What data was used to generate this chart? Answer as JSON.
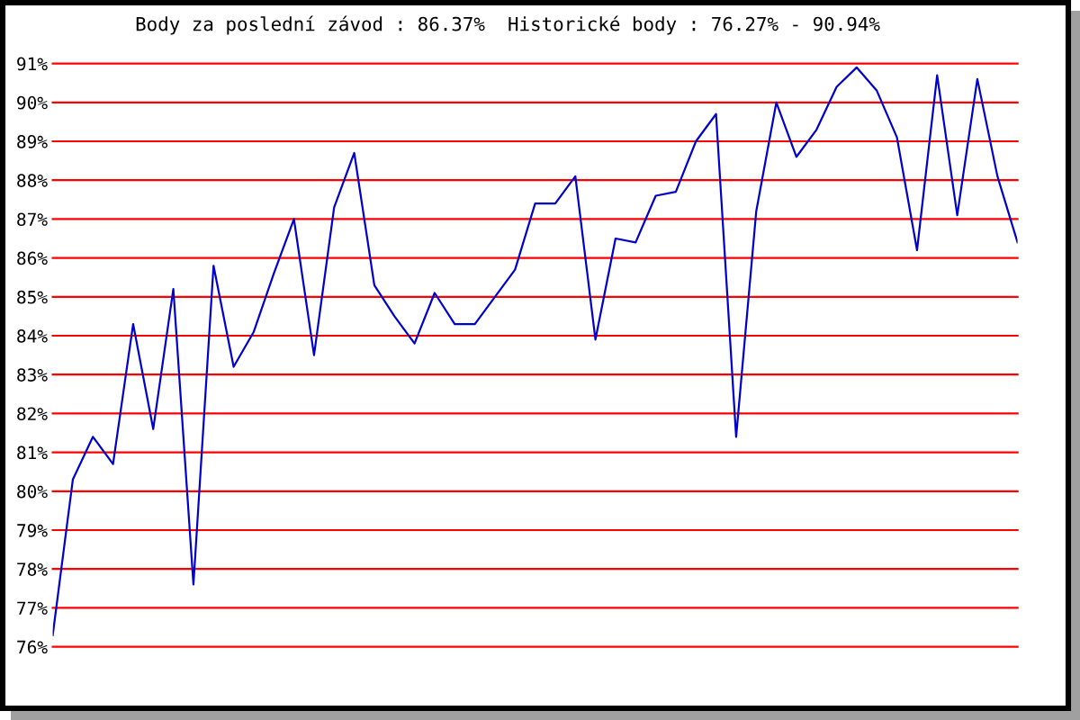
{
  "chart_data": {
    "type": "line",
    "title": "Body za poslední závod : 86.37%  Historické body : 76.27% - 90.94%",
    "categories": [
      null,
      null,
      null,
      null,
      null,
      null,
      null,
      null,
      null,
      null,
      null,
      null,
      null,
      null,
      null,
      null,
      null,
      null,
      null,
      null,
      null,
      null,
      null,
      null,
      null,
      null,
      null,
      null,
      null,
      null,
      null,
      null,
      null,
      null,
      null,
      null,
      null,
      null,
      null,
      null,
      null,
      null,
      null,
      null,
      null,
      null,
      null,
      null,
      null
    ],
    "series": [
      {
        "color": "#0000cc",
        "values": [
          76.3,
          80.3,
          81.4,
          80.7,
          84.3,
          81.6,
          85.2,
          77.6,
          85.8,
          83.2,
          84.1,
          85.6,
          87.0,
          83.5,
          87.3,
          88.7,
          85.3,
          84.5,
          83.8,
          85.1,
          84.3,
          84.3,
          85.0,
          85.7,
          87.4,
          87.4,
          88.1,
          83.9,
          86.5,
          86.4,
          87.6,
          87.7,
          89.0,
          89.7,
          81.4,
          87.2,
          90.0,
          88.6,
          89.3,
          90.4,
          90.9,
          90.3,
          89.1,
          86.2,
          90.7,
          87.1,
          90.6,
          88.1,
          86.4
        ]
      }
    ],
    "ylim": [
      76,
      91
    ],
    "yticks": [
      {
        "value": 76,
        "label": "76%"
      },
      {
        "value": 77,
        "label": "77%"
      },
      {
        "value": 78,
        "label": "78%"
      },
      {
        "value": 79,
        "label": "79%"
      },
      {
        "value": 80,
        "label": "80%"
      },
      {
        "value": 81,
        "label": "81%"
      },
      {
        "value": 82,
        "label": "82%"
      },
      {
        "value": 83,
        "label": "83%"
      },
      {
        "value": 84,
        "label": "84%"
      },
      {
        "value": 85,
        "label": "85%"
      },
      {
        "value": 86,
        "label": "86%"
      },
      {
        "value": 87,
        "label": "87%"
      },
      {
        "value": 88,
        "label": "88%"
      },
      {
        "value": 89,
        "label": "89%"
      },
      {
        "value": 90,
        "label": "90%"
      },
      {
        "value": 91,
        "label": "91%"
      }
    ],
    "grid": "y",
    "tick_labels": "y",
    "line_style": "solid"
  }
}
